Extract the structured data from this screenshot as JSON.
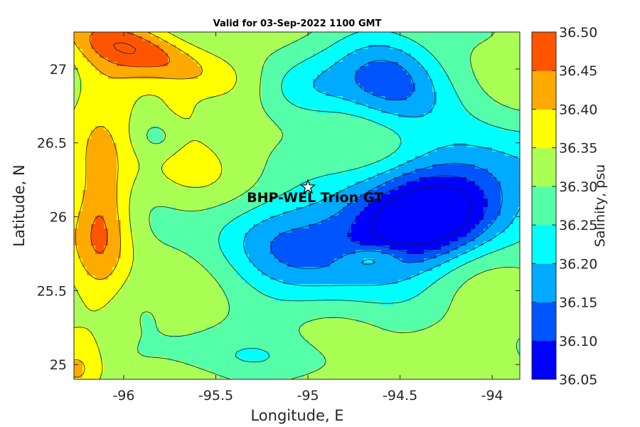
{
  "chart_data": {
    "type": "contour",
    "title": "Valid for 03-Sep-2022 1100 GMT",
    "xlabel": "Longitude, E",
    "ylabel": "Latitude, N",
    "xlim": [
      -96.27,
      -93.85
    ],
    "ylim": [
      24.9,
      27.25
    ],
    "xticks": [
      -96,
      -95.5,
      -95,
      -94.5,
      -94
    ],
    "xtick_labels": [
      "-96",
      "-95.5",
      "-95",
      "-94.5",
      "-94"
    ],
    "yticks": [
      25,
      25.5,
      26,
      26.5,
      27
    ],
    "ytick_labels": [
      "25",
      "25.5",
      "26",
      "26.5",
      "27"
    ],
    "colorbar": {
      "label": "Salinity, psu",
      "levels": [
        36.05,
        36.1,
        36.15,
        36.2,
        36.25,
        36.3,
        36.35,
        36.4,
        36.45,
        36.5
      ],
      "level_labels": [
        "36.05",
        "36.10",
        "36.15",
        "36.20",
        "36.25",
        "36.30",
        "36.35",
        "36.40",
        "36.45",
        "36.50"
      ],
      "colors": [
        "#0000ff",
        "#0055ff",
        "#00aaff",
        "#00ffff",
        "#55ffaa",
        "#aaff55",
        "#ffff00",
        "#ffaa00",
        "#ff5500"
      ]
    },
    "site": {
      "name": "BHP-WEL Trion GT",
      "lon": -95.0,
      "lat": 26.2
    },
    "features": [
      {
        "kind": "max",
        "lon": -95.9,
        "lat": 27.12,
        "amp": 0.14,
        "sx": 0.33,
        "sy": 0.11,
        "rot": -22
      },
      {
        "kind": "max",
        "lon": -95.72,
        "lat": 26.65,
        "amp": 0.07,
        "sx": 0.12,
        "sy": 0.15,
        "rot": 0
      },
      {
        "kind": "max",
        "lon": -95.65,
        "lat": 26.35,
        "amp": 0.05,
        "sx": 0.14,
        "sy": 0.14,
        "rot": 0
      },
      {
        "kind": "max",
        "lon": -96.12,
        "lat": 25.95,
        "amp": 0.13,
        "sx": 0.11,
        "sy": 0.4,
        "rot": 0
      },
      {
        "kind": "max",
        "lon": -96.25,
        "lat": 24.95,
        "amp": 0.09,
        "sx": 0.1,
        "sy": 0.13,
        "rot": 0
      },
      {
        "kind": "max",
        "lon": -96.1,
        "lat": 26.9,
        "amp": 0.05,
        "sx": 0.15,
        "sy": 0.3,
        "rot": 0
      },
      {
        "kind": "min",
        "lon": -94.42,
        "lat": 26.0,
        "amp": 0.29,
        "sx": 0.55,
        "sy": 0.26,
        "rot": 28
      },
      {
        "kind": "min",
        "lon": -94.35,
        "lat": 25.95,
        "amp": 0.07,
        "sx": 0.22,
        "sy": 0.14,
        "rot": 20
      },
      {
        "kind": "min",
        "lon": -94.55,
        "lat": 26.95,
        "amp": 0.2,
        "sx": 0.2,
        "sy": 0.25,
        "rot": 25
      },
      {
        "kind": "min",
        "lon": -95.05,
        "lat": 26.85,
        "amp": 0.09,
        "sx": 0.22,
        "sy": 0.15,
        "rot": 0
      },
      {
        "kind": "min",
        "lon": -95.25,
        "lat": 25.9,
        "amp": 0.08,
        "sx": 0.25,
        "sy": 0.2,
        "rot": 0
      },
      {
        "kind": "min",
        "lon": -95.4,
        "lat": 25.05,
        "amp": 0.045,
        "sx": 0.45,
        "sy": 0.1,
        "rot": 0
      },
      {
        "kind": "min",
        "lon": -95.8,
        "lat": 26.55,
        "amp": 0.07,
        "sx": 0.1,
        "sy": 0.1,
        "rot": 0
      },
      {
        "kind": "max",
        "lon": -94.65,
        "lat": 25.72,
        "amp": 0.09,
        "sx": 0.12,
        "sy": 0.06,
        "rot": 10
      }
    ],
    "background": 36.32
  }
}
